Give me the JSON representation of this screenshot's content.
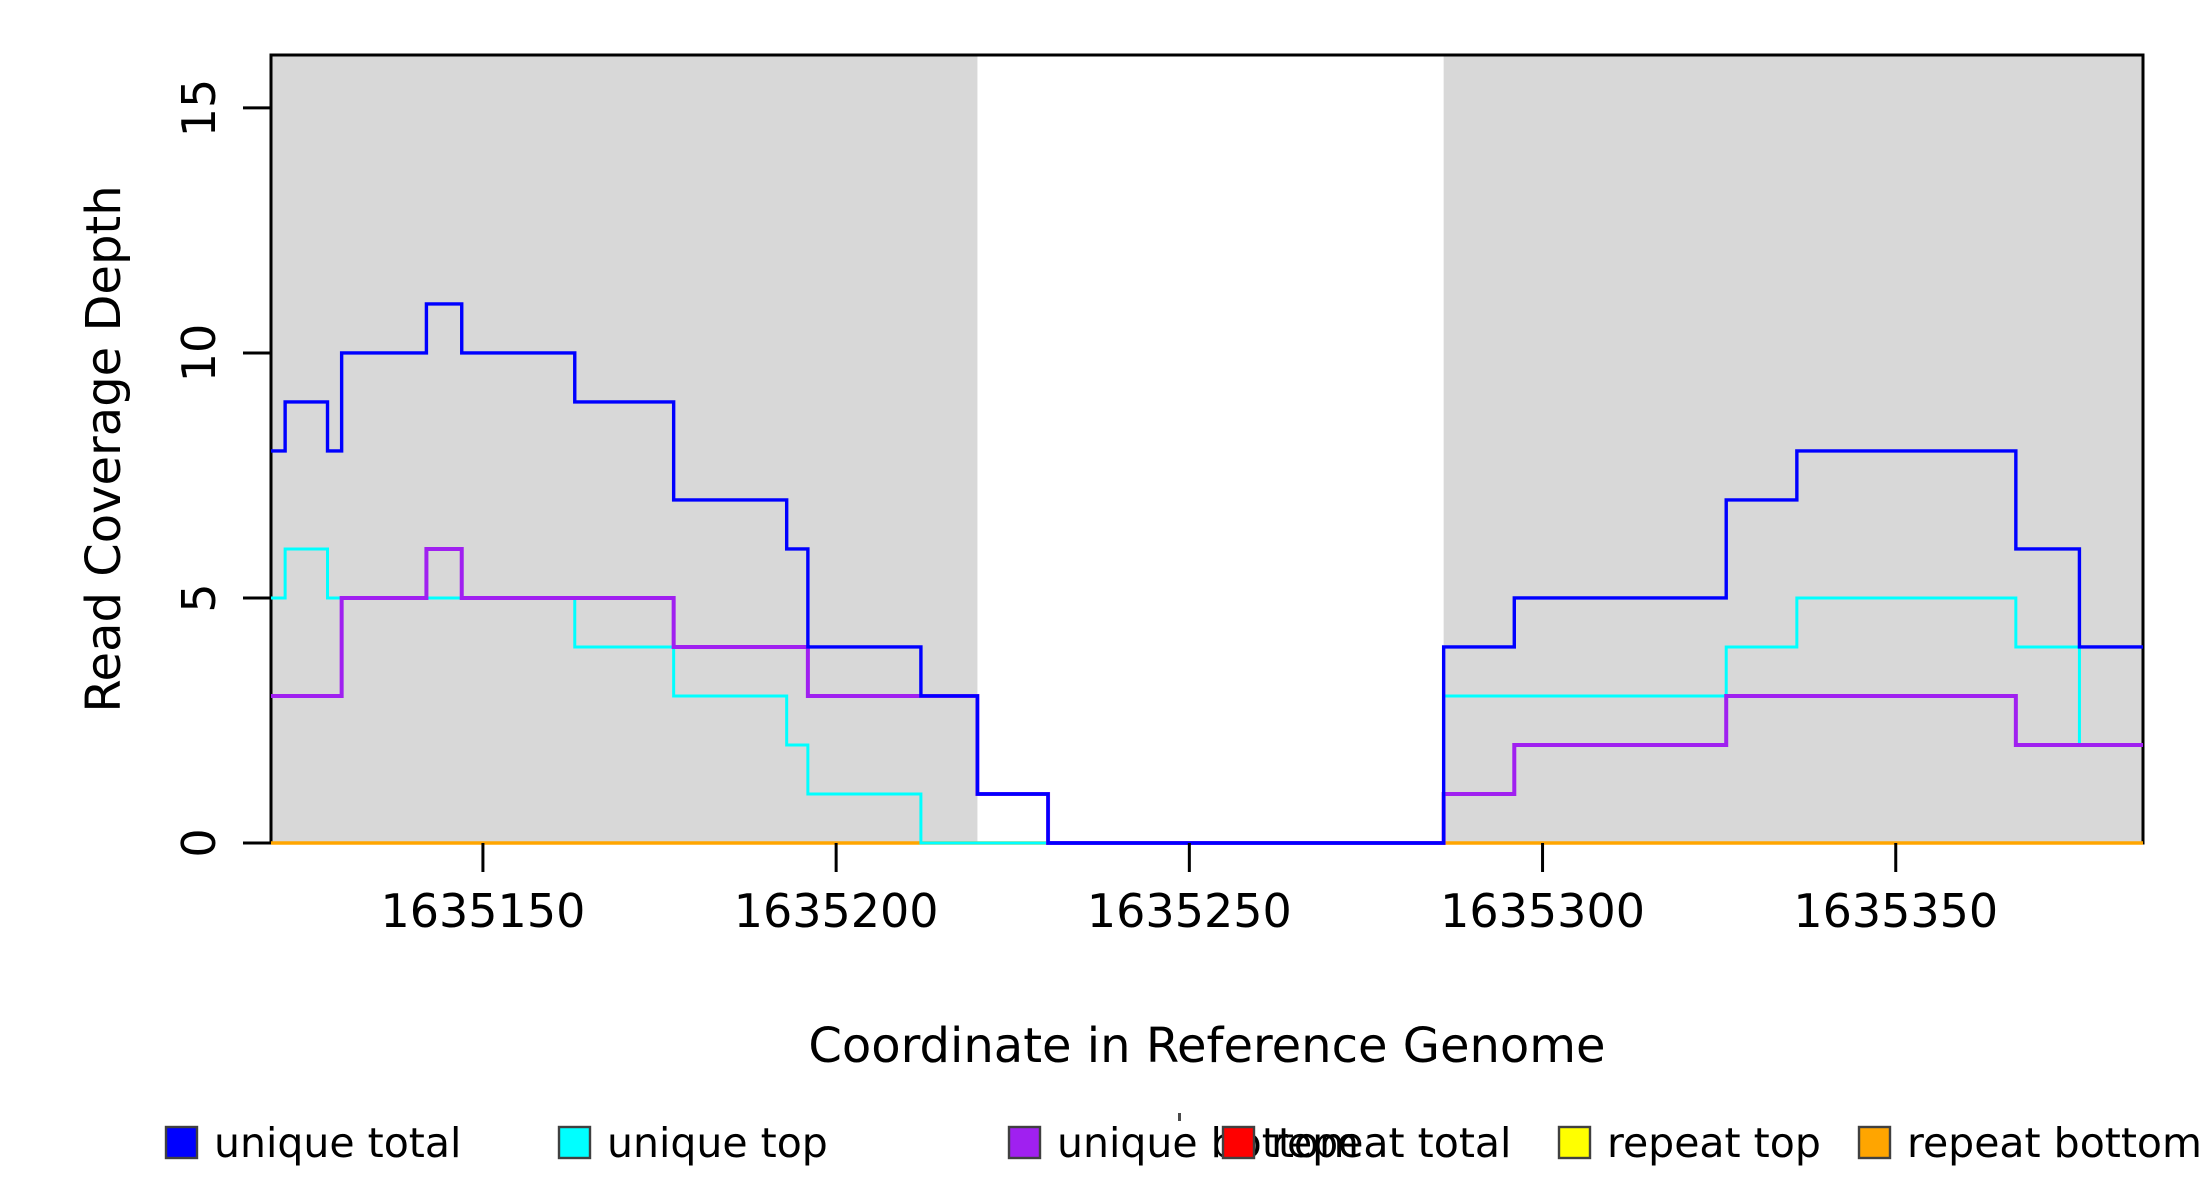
{
  "chart_data": {
    "type": "line",
    "subtype": "step-coverage-plot",
    "title": "",
    "xlabel": "Coordinate in Reference Genome",
    "ylabel": "Read Coverage Depth",
    "xlim": [
      1635120,
      1635385
    ],
    "ylim": [
      0,
      16.08
    ],
    "x_ticks": [
      1635150,
      1635200,
      1635250,
      1635300,
      1635350
    ],
    "y_ticks": [
      0,
      5,
      10,
      15
    ],
    "grid": false,
    "legend_position": "bottom",
    "background_color": "#ffffff",
    "shaded_region_color": "#d8d8d8",
    "shaded_regions": [
      {
        "x0": 1635120,
        "x1": 1635220
      },
      {
        "x0": 1635286,
        "x1": 1635385
      }
    ],
    "series": [
      {
        "name": "repeat total",
        "color": "#ff0000",
        "breakpoints": [
          [
            1635120,
            0
          ]
        ]
      },
      {
        "name": "repeat top",
        "color": "#ffff00",
        "breakpoints": [
          [
            1635120,
            0
          ]
        ]
      },
      {
        "name": "repeat bottom",
        "color": "#ffa500",
        "breakpoints": [
          [
            1635120,
            0
          ]
        ]
      },
      {
        "name": "unique top",
        "color": "#00ffff",
        "breakpoints": [
          [
            1635120,
            5
          ],
          [
            1635122,
            6
          ],
          [
            1635128,
            5
          ],
          [
            1635163,
            4
          ],
          [
            1635177,
            3
          ],
          [
            1635193,
            2
          ],
          [
            1635196,
            1
          ],
          [
            1635212,
            0
          ],
          [
            1635286,
            3
          ],
          [
            1635326,
            4
          ],
          [
            1635336,
            5
          ],
          [
            1635367,
            4
          ],
          [
            1635376,
            2
          ]
        ]
      },
      {
        "name": "unique bottom",
        "color": "#a020f0",
        "breakpoints": [
          [
            1635120,
            3
          ],
          [
            1635130,
            5
          ],
          [
            1635142,
            6
          ],
          [
            1635147,
            5
          ],
          [
            1635177,
            4
          ],
          [
            1635196,
            3
          ],
          [
            1635220,
            1
          ],
          [
            1635230,
            0
          ],
          [
            1635286,
            1
          ],
          [
            1635296,
            2
          ],
          [
            1635326,
            3
          ],
          [
            1635367,
            2
          ]
        ]
      },
      {
        "name": "unique total",
        "color": "#0000ff",
        "breakpoints": [
          [
            1635120,
            8
          ],
          [
            1635122,
            9
          ],
          [
            1635128,
            8
          ],
          [
            1635130,
            10
          ],
          [
            1635142,
            11
          ],
          [
            1635147,
            10
          ],
          [
            1635163,
            9
          ],
          [
            1635177,
            7
          ],
          [
            1635193,
            6
          ],
          [
            1635196,
            4
          ],
          [
            1635212,
            3
          ],
          [
            1635220,
            1
          ],
          [
            1635230,
            0
          ],
          [
            1635286,
            4
          ],
          [
            1635296,
            5
          ],
          [
            1635326,
            7
          ],
          [
            1635336,
            8
          ],
          [
            1635367,
            6
          ],
          [
            1635376,
            4
          ]
        ]
      }
    ],
    "legend": [
      {
        "label": "unique total",
        "color": "#0000ff"
      },
      {
        "label": "unique top",
        "color": "#00ffff"
      },
      {
        "label": "unique bottom",
        "color": "#a020f0"
      },
      {
        "label": "repeat total",
        "color": "#ff0000"
      },
      {
        "label": "repeat top",
        "color": "#ffff00"
      },
      {
        "label": "repeat bottom",
        "color": "#ffa500"
      }
    ]
  }
}
